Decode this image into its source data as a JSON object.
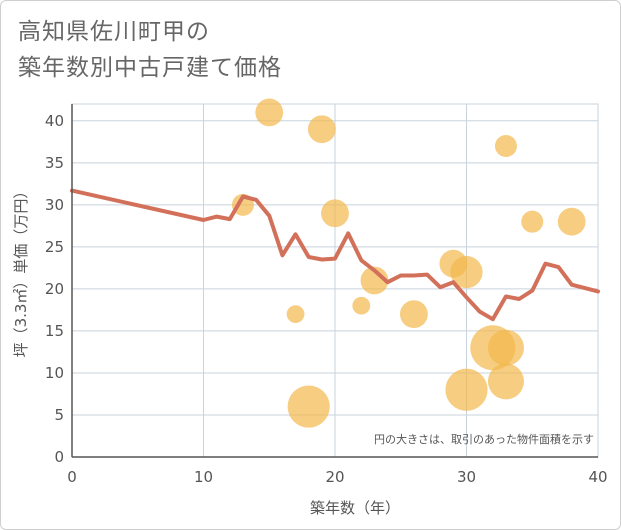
{
  "title_line1": "高知県佐川町甲の",
  "title_line2": "築年数別中古戸建て価格",
  "chart_data": {
    "type": "scatter+line",
    "title": "高知県佐川町甲の築年数別中古戸建て価格",
    "xlabel": "築年数（年）",
    "ylabel": "坪（3.3㎡）単価（万円）",
    "xlim": [
      0,
      40
    ],
    "ylim": [
      0,
      42
    ],
    "xticks": [
      0,
      10,
      20,
      30,
      40
    ],
    "yticks": [
      0,
      5,
      10,
      15,
      20,
      25,
      30,
      35,
      40
    ],
    "grid": true,
    "note": "円の大きさは、取引のあった物件面積を示す",
    "colors": {
      "line": "#d2705a",
      "bubble": "#f2b84b"
    },
    "bubbles": [
      {
        "x": 15,
        "y": 41,
        "size": 2
      },
      {
        "x": 19,
        "y": 39,
        "size": 2
      },
      {
        "x": 33,
        "y": 37,
        "size": 1
      },
      {
        "x": 13,
        "y": 30,
        "size": 1
      },
      {
        "x": 20,
        "y": 29,
        "size": 2
      },
      {
        "x": 35,
        "y": 28,
        "size": 1
      },
      {
        "x": 38,
        "y": 28,
        "size": 2
      },
      {
        "x": 29,
        "y": 23,
        "size": 2
      },
      {
        "x": 30,
        "y": 22,
        "size": 3
      },
      {
        "x": 23,
        "y": 21,
        "size": 2
      },
      {
        "x": 22,
        "y": 18,
        "size": 0.5
      },
      {
        "x": 17,
        "y": 17,
        "size": 0.5
      },
      {
        "x": 26,
        "y": 17,
        "size": 2
      },
      {
        "x": 32,
        "y": 13,
        "size": 7
      },
      {
        "x": 33,
        "y": 13,
        "size": 4
      },
      {
        "x": 33,
        "y": 9,
        "size": 4
      },
      {
        "x": 30,
        "y": 8,
        "size": 6
      },
      {
        "x": 18,
        "y": 6,
        "size": 6
      }
    ],
    "line": {
      "x": [
        0,
        10,
        11,
        12,
        13,
        14,
        15,
        16,
        17,
        18,
        19,
        20,
        21,
        22,
        23,
        24,
        25,
        26,
        27,
        28,
        29,
        30,
        31,
        32,
        33,
        34,
        35,
        36,
        37,
        38,
        40
      ],
      "y": [
        31.7,
        28.2,
        28.6,
        28.3,
        31.0,
        30.6,
        28.7,
        24.0,
        26.5,
        23.8,
        23.5,
        23.6,
        26.6,
        23.4,
        22.2,
        20.8,
        21.6,
        21.6,
        21.7,
        20.2,
        20.8,
        19.0,
        17.3,
        16.4,
        19.1,
        18.8,
        19.8,
        23.0,
        22.6,
        20.5,
        19.7
      ]
    }
  }
}
